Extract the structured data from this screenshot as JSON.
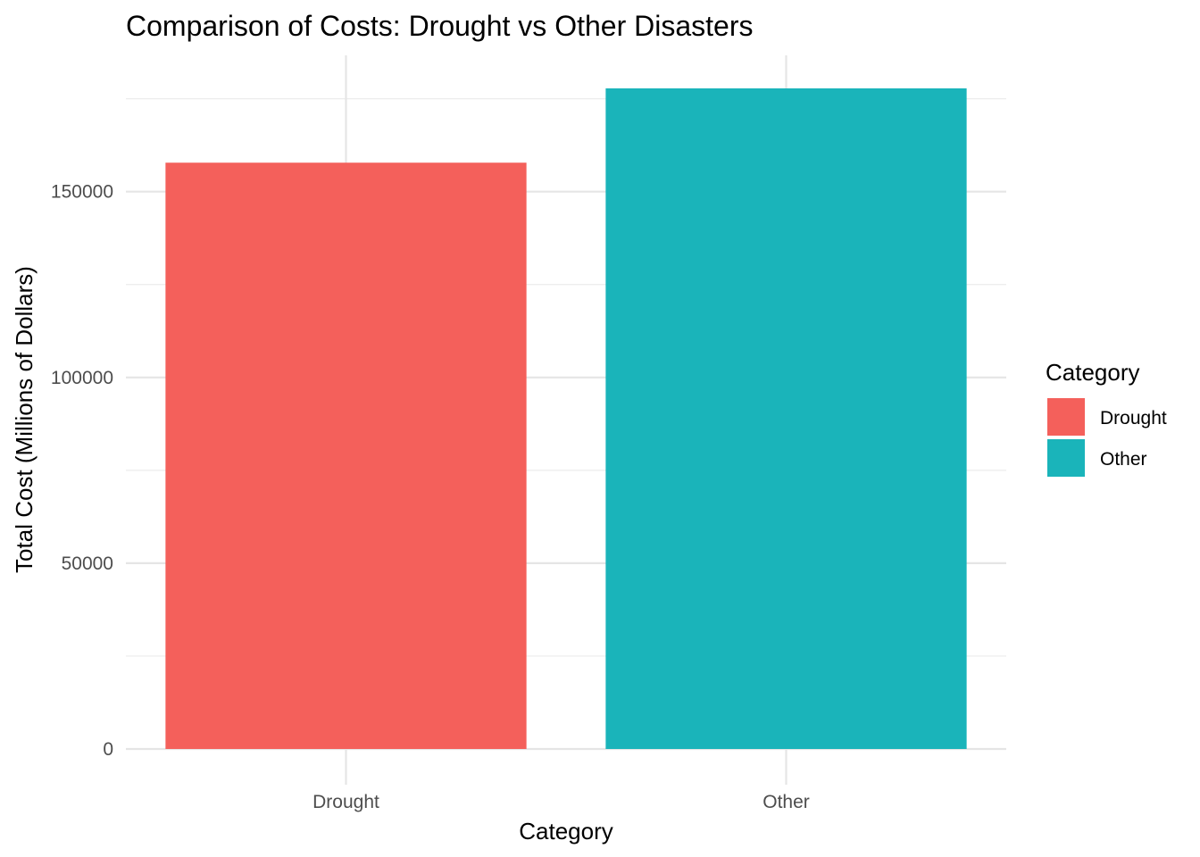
{
  "chart_data": {
    "type": "bar",
    "title": "Comparison of Costs: Drought vs Other Disasters",
    "xlabel": "Category",
    "ylabel": "Total Cost (Millions of Dollars)",
    "categories": [
      "Drought",
      "Other"
    ],
    "values": [
      157800,
      177800
    ],
    "colors": [
      "#F4605B",
      "#1AB4BA"
    ],
    "ylim": [
      0,
      177800
    ],
    "y_ticks": [
      0,
      50000,
      100000,
      150000
    ],
    "y_tick_labels": [
      "0",
      "50000",
      "100000",
      "150000"
    ],
    "grid": true,
    "legend": {
      "title": "Category",
      "placement": "right",
      "entries": [
        "Drought",
        "Other"
      ]
    }
  }
}
